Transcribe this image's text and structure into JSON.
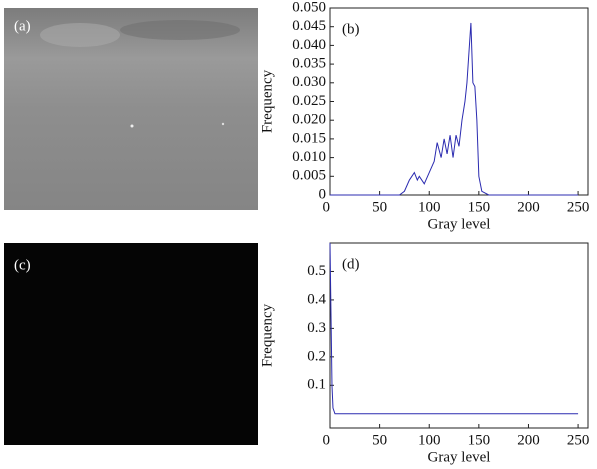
{
  "panels": [
    {
      "label": "(a)"
    },
    {
      "label": "(c)"
    }
  ],
  "chart_data": [
    {
      "type": "line",
      "panel_label": "(b)",
      "x_label": "Gray level",
      "y_label": "Frequency",
      "x": [
        0,
        70,
        75,
        80,
        85,
        88,
        90,
        95,
        100,
        105,
        108,
        112,
        115,
        118,
        121,
        124,
        127,
        130,
        133,
        136,
        138,
        140,
        142,
        144,
        146,
        148,
        150,
        153,
        160,
        250
      ],
      "series": [
        {
          "color": "#2b2bb0",
          "values": [
            0,
            0,
            0.001,
            0.004,
            0.006,
            0.004,
            0.005,
            0.003,
            0.006,
            0.009,
            0.014,
            0.01,
            0.015,
            0.011,
            0.016,
            0.01,
            0.016,
            0.013,
            0.02,
            0.025,
            0.03,
            0.038,
            0.046,
            0.03,
            0.029,
            0.02,
            0.005,
            0.001,
            0,
            0
          ]
        }
      ],
      "xlim": [
        0,
        260
      ],
      "ylim": [
        0,
        0.05
      ],
      "xticks": [
        0,
        50,
        100,
        150,
        200,
        250
      ],
      "yticks": [
        0,
        0.005,
        {
          "value": 0.01,
          "label": "0.010"
        },
        0.015,
        {
          "value": 0.02,
          "label": "0.020"
        },
        0.025,
        {
          "value": 0.03,
          "label": "0.030"
        },
        0.035,
        {
          "value": 0.04,
          "label": "0.040"
        },
        0.045,
        {
          "value": 0.05,
          "label": "0.050"
        }
      ]
    },
    {
      "type": "line",
      "panel_label": "(d)",
      "x_label": "Gray level",
      "y_label": "Frequency",
      "x": [
        0,
        1,
        2,
        3,
        5,
        250
      ],
      "series": [
        {
          "color": "#2b2bb0",
          "values": [
            0.6,
            0.35,
            0.1,
            0.02,
            0,
            0
          ]
        }
      ],
      "xlim": [
        0,
        260
      ],
      "ylim": [
        -0.05,
        0.6
      ],
      "xticks": [
        0,
        50,
        100,
        150,
        200,
        250
      ],
      "yticks": [
        0.1,
        0.2,
        0.3,
        0.4,
        0.5
      ]
    }
  ]
}
